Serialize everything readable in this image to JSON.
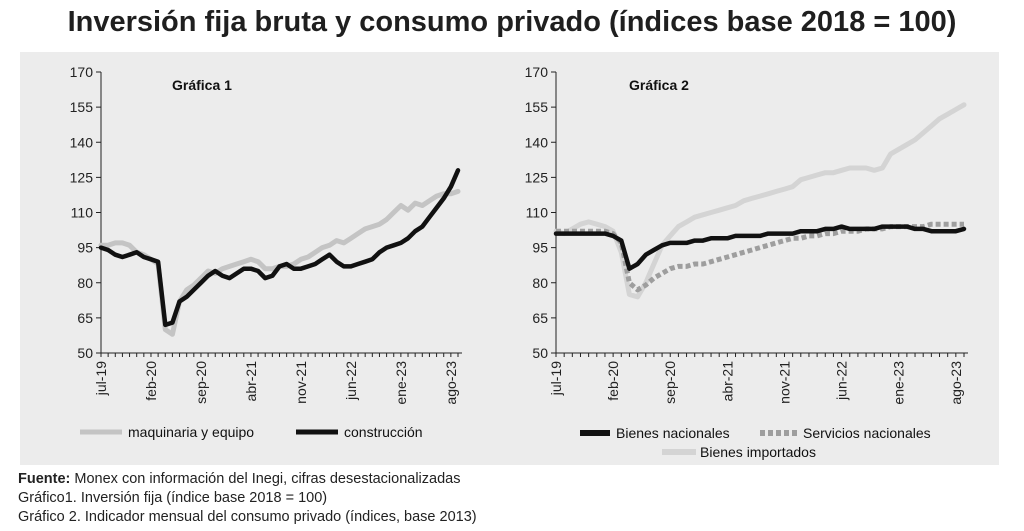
{
  "title": "Inversión fija bruta y consumo privado (índices base 2018 = 100)",
  "footer": {
    "source_label": "Fuente:",
    "source_text": " Monex con información del Inegi, cifras desestacionalizadas",
    "note1": "Gráfico1. Inversión fija (índice base 2018 = 100)",
    "note2": "Gráfico 2. Indicador mensual del consumo privado (índices, base 2013)"
  },
  "colors": {
    "panel_bg": "#ececec",
    "dark_series": "#111111",
    "light_series": "#c4c4c4",
    "dotted_series": "#9e9e9e",
    "imported_series": "#d4d4d4"
  },
  "chart_data": [
    {
      "type": "line",
      "title": "Gráfica 1",
      "x_tick_labels": [
        "jul-19",
        "feb-20",
        "sep-20",
        "abr-21",
        "nov-21",
        "jun-22",
        "ene-23",
        "ago-23"
      ],
      "x_tick_months": [
        "2019-07",
        "2020-02",
        "2020-09",
        "2021-04",
        "2021-11",
        "2022-06",
        "2023-01",
        "2023-08"
      ],
      "x_range": [
        "2019-07",
        "2023-09"
      ],
      "ylim": [
        50,
        170
      ],
      "y_ticks": [
        50,
        65,
        80,
        95,
        110,
        125,
        140,
        155,
        170
      ],
      "grid": false,
      "legend_position": "bottom",
      "series": [
        {
          "name": "maquinaria y equipo",
          "style": "solid-light",
          "x": [
            "2019-07",
            "2019-08",
            "2019-09",
            "2019-10",
            "2019-11",
            "2019-12",
            "2020-01",
            "2020-02",
            "2020-03",
            "2020-04",
            "2020-05",
            "2020-06",
            "2020-07",
            "2020-08",
            "2020-09",
            "2020-10",
            "2020-11",
            "2020-12",
            "2021-01",
            "2021-02",
            "2021-03",
            "2021-04",
            "2021-05",
            "2021-06",
            "2021-07",
            "2021-08",
            "2021-09",
            "2021-10",
            "2021-11",
            "2021-12",
            "2022-01",
            "2022-02",
            "2022-03",
            "2022-04",
            "2022-05",
            "2022-06",
            "2022-07",
            "2022-08",
            "2022-09",
            "2022-10",
            "2022-11",
            "2022-12",
            "2023-01",
            "2023-02",
            "2023-03",
            "2023-04",
            "2023-05",
            "2023-06",
            "2023-07",
            "2023-08",
            "2023-09"
          ],
          "values": [
            96,
            96,
            97,
            97,
            96,
            93,
            92,
            90,
            88,
            60,
            58,
            72,
            77,
            79,
            82,
            85,
            84,
            86,
            87,
            88,
            89,
            90,
            89,
            86,
            86,
            87,
            87,
            88,
            90,
            91,
            93,
            95,
            96,
            98,
            97,
            99,
            101,
            103,
            104,
            105,
            107,
            110,
            113,
            111,
            114,
            113,
            115,
            117,
            118,
            118,
            119
          ]
        },
        {
          "name": "construcción",
          "style": "solid-dark",
          "x": [
            "2019-07",
            "2019-08",
            "2019-09",
            "2019-10",
            "2019-11",
            "2019-12",
            "2020-01",
            "2020-02",
            "2020-03",
            "2020-04",
            "2020-05",
            "2020-06",
            "2020-07",
            "2020-08",
            "2020-09",
            "2020-10",
            "2020-11",
            "2020-12",
            "2021-01",
            "2021-02",
            "2021-03",
            "2021-04",
            "2021-05",
            "2021-06",
            "2021-07",
            "2021-08",
            "2021-09",
            "2021-10",
            "2021-11",
            "2021-12",
            "2022-01",
            "2022-02",
            "2022-03",
            "2022-04",
            "2022-05",
            "2022-06",
            "2022-07",
            "2022-08",
            "2022-09",
            "2022-10",
            "2022-11",
            "2022-12",
            "2023-01",
            "2023-02",
            "2023-03",
            "2023-04",
            "2023-05",
            "2023-06",
            "2023-07",
            "2023-08",
            "2023-09"
          ],
          "values": [
            95,
            94,
            92,
            91,
            92,
            93,
            91,
            90,
            89,
            62,
            63,
            72,
            74,
            77,
            80,
            83,
            85,
            83,
            82,
            84,
            86,
            86,
            85,
            82,
            83,
            87,
            88,
            86,
            86,
            87,
            88,
            90,
            92,
            89,
            87,
            87,
            88,
            89,
            90,
            93,
            95,
            96,
            97,
            99,
            102,
            104,
            108,
            112,
            116,
            121,
            128
          ]
        }
      ]
    },
    {
      "type": "line",
      "title": "Gráfica 2",
      "x_tick_labels": [
        "jul-19",
        "feb-20",
        "sep-20",
        "abr-21",
        "nov-21",
        "jun-22",
        "ene-23",
        "ago-23"
      ],
      "x_tick_months": [
        "2019-07",
        "2020-02",
        "2020-09",
        "2021-04",
        "2021-11",
        "2022-06",
        "2023-01",
        "2023-08"
      ],
      "x_range": [
        "2019-07",
        "2023-09"
      ],
      "ylim": [
        50,
        170
      ],
      "y_ticks": [
        50,
        65,
        80,
        95,
        110,
        125,
        140,
        155,
        170
      ],
      "grid": false,
      "legend_position": "bottom",
      "series": [
        {
          "name": "Bienes nacionales",
          "style": "solid-dark",
          "x": [
            "2019-07",
            "2019-08",
            "2019-09",
            "2019-10",
            "2019-11",
            "2019-12",
            "2020-01",
            "2020-02",
            "2020-03",
            "2020-04",
            "2020-05",
            "2020-06",
            "2020-07",
            "2020-08",
            "2020-09",
            "2020-10",
            "2020-11",
            "2020-12",
            "2021-01",
            "2021-02",
            "2021-03",
            "2021-04",
            "2021-05",
            "2021-06",
            "2021-07",
            "2021-08",
            "2021-09",
            "2021-10",
            "2021-11",
            "2021-12",
            "2022-01",
            "2022-02",
            "2022-03",
            "2022-04",
            "2022-05",
            "2022-06",
            "2022-07",
            "2022-08",
            "2022-09",
            "2022-10",
            "2022-11",
            "2022-12",
            "2023-01",
            "2023-02",
            "2023-03",
            "2023-04",
            "2023-05",
            "2023-06",
            "2023-07",
            "2023-08",
            "2023-09"
          ],
          "values": [
            101,
            101,
            101,
            101,
            101,
            101,
            101,
            100,
            98,
            86,
            88,
            92,
            94,
            96,
            97,
            97,
            97,
            98,
            98,
            99,
            99,
            99,
            100,
            100,
            100,
            100,
            101,
            101,
            101,
            101,
            102,
            102,
            102,
            103,
            103,
            104,
            103,
            103,
            103,
            103,
            104,
            104,
            104,
            104,
            103,
            103,
            102,
            102,
            102,
            102,
            103
          ]
        },
        {
          "name": "Servicios nacionales",
          "style": "dotted",
          "x": [
            "2019-07",
            "2019-08",
            "2019-09",
            "2019-10",
            "2019-11",
            "2019-12",
            "2020-01",
            "2020-02",
            "2020-03",
            "2020-04",
            "2020-05",
            "2020-06",
            "2020-07",
            "2020-08",
            "2020-09",
            "2020-10",
            "2020-11",
            "2020-12",
            "2021-01",
            "2021-02",
            "2021-03",
            "2021-04",
            "2021-05",
            "2021-06",
            "2021-07",
            "2021-08",
            "2021-09",
            "2021-10",
            "2021-11",
            "2021-12",
            "2022-01",
            "2022-02",
            "2022-03",
            "2022-04",
            "2022-05",
            "2022-06",
            "2022-07",
            "2022-08",
            "2022-09",
            "2022-10",
            "2022-11",
            "2022-12",
            "2023-01",
            "2023-02",
            "2023-03",
            "2023-04",
            "2023-05",
            "2023-06",
            "2023-07",
            "2023-08",
            "2023-09"
          ],
          "values": [
            102,
            102,
            102,
            102,
            102,
            102,
            102,
            101,
            97,
            80,
            77,
            79,
            82,
            84,
            86,
            87,
            87,
            88,
            88,
            89,
            90,
            91,
            92,
            93,
            94,
            95,
            96,
            97,
            98,
            99,
            99,
            100,
            100,
            101,
            101,
            102,
            102,
            102,
            103,
            103,
            103,
            104,
            104,
            104,
            104,
            104,
            105,
            105,
            105,
            105,
            105
          ]
        },
        {
          "name": "Bienes importados",
          "style": "solid-light",
          "x": [
            "2019-07",
            "2019-08",
            "2019-09",
            "2019-10",
            "2019-11",
            "2019-12",
            "2020-01",
            "2020-02",
            "2020-03",
            "2020-04",
            "2020-05",
            "2020-06",
            "2020-07",
            "2020-08",
            "2020-09",
            "2020-10",
            "2020-11",
            "2020-12",
            "2021-01",
            "2021-02",
            "2021-03",
            "2021-04",
            "2021-05",
            "2021-06",
            "2021-07",
            "2021-08",
            "2021-09",
            "2021-10",
            "2021-11",
            "2021-12",
            "2022-01",
            "2022-02",
            "2022-03",
            "2022-04",
            "2022-05",
            "2022-06",
            "2022-07",
            "2022-08",
            "2022-09",
            "2022-10",
            "2022-11",
            "2022-12",
            "2023-01",
            "2023-02",
            "2023-03",
            "2023-04",
            "2023-05",
            "2023-06",
            "2023-07",
            "2023-08",
            "2023-09"
          ],
          "values": [
            102,
            101,
            103,
            105,
            106,
            105,
            104,
            102,
            93,
            75,
            74,
            80,
            88,
            96,
            100,
            104,
            106,
            108,
            109,
            110,
            111,
            112,
            113,
            115,
            116,
            117,
            118,
            119,
            120,
            121,
            124,
            125,
            126,
            127,
            127,
            128,
            129,
            129,
            129,
            128,
            129,
            135,
            137,
            139,
            141,
            144,
            147,
            150,
            152,
            154,
            156
          ]
        }
      ]
    }
  ]
}
